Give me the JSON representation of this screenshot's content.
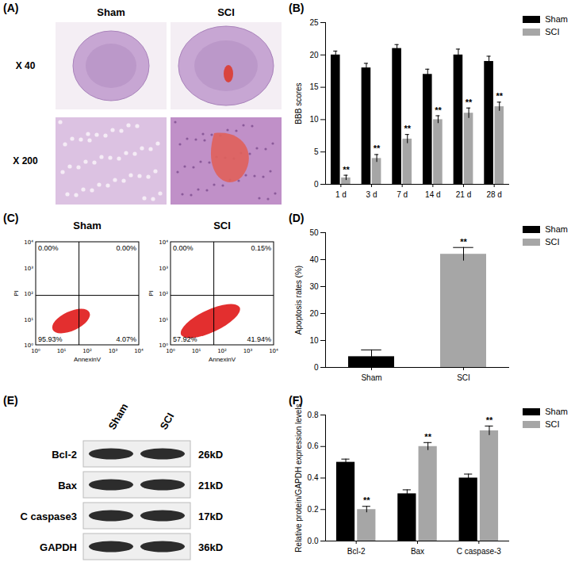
{
  "histology": {
    "panel": "(A)",
    "columns": [
      "Sham",
      "SCI"
    ],
    "magnifications": [
      "X 40",
      "X 200"
    ]
  },
  "flow_cytometry": {
    "panel": "(C)",
    "x_label": "AnnexinV",
    "y_label": "PI",
    "tick_labels": [
      "10⁰",
      "10¹",
      "10²",
      "10³",
      "10⁴"
    ],
    "plots": [
      {
        "title": "Sham",
        "upper_left": {
          "value": 0,
          "label": "0.00%"
        },
        "upper_right": {
          "value": 0,
          "label": "0.00%"
        },
        "lower_left": {
          "value": 95.93,
          "label": "95.93%"
        },
        "lower_right": {
          "value": 4.07,
          "label": "4.07%"
        }
      },
      {
        "title": "SCI",
        "upper_left": {
          "value": 0,
          "label": "0.00%"
        },
        "upper_right": {
          "value": 0.15,
          "label": "0.15%"
        },
        "lower_left": {
          "value": 57.92,
          "label": "57.92%"
        },
        "lower_right": {
          "value": 41.94,
          "label": "41.94%"
        }
      }
    ]
  },
  "western_blot": {
    "panel": "(E)",
    "lanes": [
      "Sham",
      "SCI"
    ],
    "rows": [
      {
        "protein": "Bcl-2",
        "size": "26kD"
      },
      {
        "protein": "Bax",
        "size": "21kD"
      },
      {
        "protein": "C caspase3",
        "size": "17kD"
      },
      {
        "protein": "GAPDH",
        "size": "36kD"
      }
    ]
  },
  "chart_data": [
    {
      "type": "bar",
      "panel": "(B)",
      "y_label": "BBB scores",
      "categories": [
        "1 d",
        "3 d",
        "7 d",
        "14 d",
        "21 d",
        "28 d"
      ],
      "series": [
        {
          "name": "Sham",
          "color": "#000000",
          "values": [
            20,
            18,
            21,
            17,
            20,
            19
          ],
          "errors": [
            0.6,
            0.7,
            0.6,
            0.8,
            0.9,
            0.8
          ]
        },
        {
          "name": "SCI",
          "color": "#a6a6a6",
          "values": [
            1,
            4,
            7,
            10,
            11,
            12
          ],
          "errors": [
            0.4,
            0.6,
            0.7,
            0.6,
            0.8,
            0.7
          ],
          "annotations": [
            "**",
            "**",
            "**",
            "**",
            "**",
            "**"
          ]
        }
      ],
      "ylim": [
        0,
        25
      ],
      "yticks": [
        0,
        5,
        10,
        15,
        20,
        25
      ],
      "legend": "top-right"
    },
    {
      "type": "bar",
      "panel": "(D)",
      "y_label": "Apoptosis rates (%)",
      "categories": [
        "Sham",
        "SCI"
      ],
      "values": [
        4,
        42
      ],
      "errors": [
        2.5,
        2.5
      ],
      "colors": [
        "#000000",
        "#a6a6a6"
      ],
      "annotations": [
        null,
        "**"
      ],
      "ylim": [
        0,
        50
      ],
      "yticks": [
        0,
        10,
        20,
        30,
        40,
        50
      ],
      "legend": "top-right"
    },
    {
      "type": "bar",
      "panel": "(F)",
      "y_label": "Relative protein/GAPDH expression levels",
      "categories": [
        "Bcl-2",
        "Bax",
        "C caspase-3"
      ],
      "series": [
        {
          "name": "Sham",
          "color": "#000000",
          "values": [
            0.5,
            0.3,
            0.4
          ],
          "errors": [
            0.02,
            0.025,
            0.025
          ]
        },
        {
          "name": "SCI",
          "color": "#a6a6a6",
          "values": [
            0.2,
            0.6,
            0.7
          ],
          "errors": [
            0.02,
            0.025,
            0.03
          ],
          "annotations": [
            "**",
            "**",
            "**"
          ]
        }
      ],
      "ylim": [
        0,
        0.8
      ],
      "yticks": [
        {
          "value": 0,
          "label": "0.0"
        },
        {
          "value": 0.2,
          "label": "0.2"
        },
        {
          "value": 0.4,
          "label": "0.4"
        },
        {
          "value": 0.6,
          "label": "0.6"
        },
        {
          "value": 0.8,
          "label": "0.8"
        }
      ],
      "legend": "top-right"
    }
  ]
}
